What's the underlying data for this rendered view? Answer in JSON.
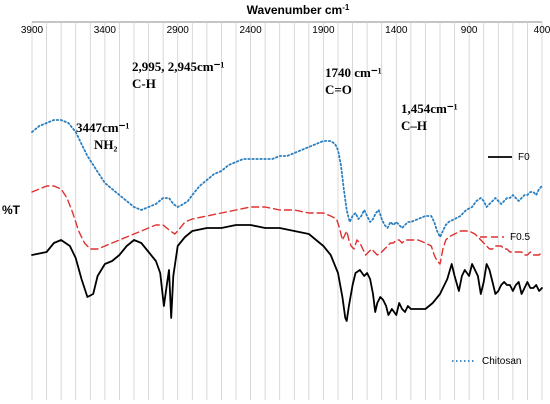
{
  "chart_data": {
    "type": "line",
    "title": "",
    "xlabel": "Wavenumber cm",
    "xlabel_sup": "-1",
    "ylabel": "%T",
    "xlim": [
      3900,
      400
    ],
    "x_ticks": [
      3900,
      3400,
      2900,
      2400,
      1900,
      1400,
      900,
      400
    ],
    "x_tick_labels": [
      "3900",
      "3400",
      "2900",
      "2400",
      "1900",
      "1400",
      "900",
      "400"
    ],
    "grid": true,
    "legend_placement": "inline-right",
    "series": [
      {
        "name": "F0",
        "color": "#000000",
        "style": "solid",
        "points": [
          [
            3900,
            75
          ],
          [
            3800,
            74
          ],
          [
            3750,
            71
          ],
          [
            3700,
            70
          ],
          [
            3640,
            72
          ],
          [
            3600,
            76
          ],
          [
            3560,
            83
          ],
          [
            3520,
            89
          ],
          [
            3480,
            88
          ],
          [
            3450,
            82
          ],
          [
            3400,
            78
          ],
          [
            3350,
            77
          ],
          [
            3300,
            75
          ],
          [
            3250,
            72
          ],
          [
            3200,
            70
          ],
          [
            3150,
            71
          ],
          [
            3100,
            74
          ],
          [
            3050,
            77
          ],
          [
            3020,
            81
          ],
          [
            2995,
            92
          ],
          [
            2975,
            85
          ],
          [
            2960,
            80
          ],
          [
            2945,
            96
          ],
          [
            2930,
            82
          ],
          [
            2900,
            72
          ],
          [
            2850,
            69
          ],
          [
            2800,
            67
          ],
          [
            2700,
            66
          ],
          [
            2600,
            66
          ],
          [
            2500,
            65
          ],
          [
            2400,
            65
          ],
          [
            2300,
            66
          ],
          [
            2200,
            66
          ],
          [
            2100,
            67
          ],
          [
            2000,
            68
          ],
          [
            1950,
            70
          ],
          [
            1900,
            72
          ],
          [
            1850,
            75
          ],
          [
            1800,
            81
          ],
          [
            1770,
            89
          ],
          [
            1750,
            96
          ],
          [
            1740,
            97
          ],
          [
            1725,
            92
          ],
          [
            1700,
            85
          ],
          [
            1680,
            81
          ],
          [
            1650,
            80
          ],
          [
            1620,
            82
          ],
          [
            1600,
            81
          ],
          [
            1580,
            83
          ],
          [
            1560,
            88
          ],
          [
            1545,
            94
          ],
          [
            1530,
            91
          ],
          [
            1510,
            89
          ],
          [
            1490,
            90
          ],
          [
            1470,
            92
          ],
          [
            1454,
            95
          ],
          [
            1430,
            93
          ],
          [
            1400,
            95
          ],
          [
            1380,
            91
          ],
          [
            1360,
            93
          ],
          [
            1340,
            94
          ],
          [
            1320,
            92
          ],
          [
            1300,
            93
          ],
          [
            1250,
            93
          ],
          [
            1200,
            93
          ],
          [
            1150,
            91
          ],
          [
            1100,
            88
          ],
          [
            1050,
            83
          ],
          [
            1020,
            78
          ],
          [
            1000,
            82
          ],
          [
            970,
            87
          ],
          [
            950,
            82
          ],
          [
            930,
            80
          ],
          [
            900,
            82
          ],
          [
            880,
            78
          ],
          [
            860,
            80
          ],
          [
            840,
            82
          ],
          [
            820,
            88
          ],
          [
            800,
            84
          ],
          [
            780,
            78
          ],
          [
            760,
            80
          ],
          [
            740,
            84
          ],
          [
            720,
            88
          ],
          [
            700,
            87
          ],
          [
            680,
            85
          ],
          [
            660,
            84
          ],
          [
            640,
            85
          ],
          [
            620,
            85
          ],
          [
            600,
            87
          ],
          [
            580,
            85
          ],
          [
            560,
            84
          ],
          [
            540,
            88
          ],
          [
            520,
            86
          ],
          [
            500,
            84
          ],
          [
            480,
            86
          ],
          [
            460,
            86
          ],
          [
            440,
            85
          ],
          [
            420,
            87
          ],
          [
            400,
            86
          ]
        ]
      },
      {
        "name": "F0.5",
        "color": "#e03030",
        "style": "dashed",
        "points": [
          [
            3900,
            54
          ],
          [
            3850,
            53
          ],
          [
            3800,
            52
          ],
          [
            3750,
            52
          ],
          [
            3700,
            53
          ],
          [
            3660,
            56
          ],
          [
            3620,
            61
          ],
          [
            3580,
            67
          ],
          [
            3540,
            71
          ],
          [
            3500,
            73
          ],
          [
            3450,
            73
          ],
          [
            3400,
            72
          ],
          [
            3350,
            71
          ],
          [
            3300,
            70
          ],
          [
            3250,
            69
          ],
          [
            3200,
            68
          ],
          [
            3150,
            67
          ],
          [
            3100,
            66
          ],
          [
            3050,
            65
          ],
          [
            3000,
            65
          ],
          [
            2950,
            67
          ],
          [
            2920,
            68
          ],
          [
            2900,
            67
          ],
          [
            2850,
            64
          ],
          [
            2800,
            63
          ],
          [
            2700,
            62
          ],
          [
            2600,
            61
          ],
          [
            2500,
            60
          ],
          [
            2400,
            59
          ],
          [
            2300,
            59
          ],
          [
            2200,
            60
          ],
          [
            2100,
            60
          ],
          [
            2000,
            61
          ],
          [
            1950,
            61
          ],
          [
            1900,
            61
          ],
          [
            1850,
            62
          ],
          [
            1810,
            63
          ],
          [
            1790,
            66
          ],
          [
            1770,
            70
          ],
          [
            1750,
            68
          ],
          [
            1740,
            67
          ],
          [
            1725,
            70
          ],
          [
            1710,
            72
          ],
          [
            1690,
            73
          ],
          [
            1670,
            70
          ],
          [
            1650,
            71
          ],
          [
            1630,
            73
          ],
          [
            1610,
            75
          ],
          [
            1590,
            74
          ],
          [
            1570,
            73
          ],
          [
            1550,
            74
          ],
          [
            1530,
            75
          ],
          [
            1500,
            74
          ],
          [
            1480,
            73
          ],
          [
            1460,
            72
          ],
          [
            1440,
            71
          ],
          [
            1420,
            71
          ],
          [
            1400,
            70
          ],
          [
            1380,
            70
          ],
          [
            1360,
            71
          ],
          [
            1340,
            70
          ],
          [
            1320,
            70
          ],
          [
            1300,
            70
          ],
          [
            1250,
            70
          ],
          [
            1200,
            71
          ],
          [
            1160,
            72
          ],
          [
            1140,
            75
          ],
          [
            1120,
            77
          ],
          [
            1100,
            78
          ],
          [
            1080,
            73
          ],
          [
            1060,
            70
          ],
          [
            1040,
            69
          ],
          [
            1000,
            68
          ],
          [
            960,
            67
          ],
          [
            930,
            67
          ],
          [
            900,
            67
          ],
          [
            860,
            68
          ],
          [
            840,
            69
          ],
          [
            820,
            70
          ],
          [
            800,
            71
          ],
          [
            780,
            72
          ],
          [
            760,
            73
          ],
          [
            740,
            73
          ],
          [
            720,
            72
          ],
          [
            700,
            72
          ],
          [
            680,
            72
          ],
          [
            660,
            73
          ],
          [
            640,
            73
          ],
          [
            620,
            74
          ],
          [
            600,
            74
          ],
          [
            580,
            74
          ],
          [
            560,
            74
          ],
          [
            540,
            74
          ],
          [
            520,
            75
          ],
          [
            500,
            75
          ],
          [
            480,
            74
          ],
          [
            460,
            75
          ],
          [
            440,
            75
          ],
          [
            420,
            75
          ],
          [
            400,
            74
          ]
        ]
      },
      {
        "name": "Chitosan",
        "color": "#2b7fc0",
        "style": "dotted",
        "points": [
          [
            3900,
            34
          ],
          [
            3850,
            32
          ],
          [
            3800,
            31
          ],
          [
            3750,
            30
          ],
          [
            3700,
            30
          ],
          [
            3650,
            31
          ],
          [
            3600,
            34
          ],
          [
            3560,
            38
          ],
          [
            3520,
            42
          ],
          [
            3480,
            45
          ],
          [
            3440,
            48
          ],
          [
            3400,
            51
          ],
          [
            3350,
            53
          ],
          [
            3300,
            55
          ],
          [
            3250,
            57
          ],
          [
            3200,
            59
          ],
          [
            3150,
            60
          ],
          [
            3100,
            59
          ],
          [
            3050,
            58
          ],
          [
            3000,
            56
          ],
          [
            2960,
            56
          ],
          [
            2930,
            58
          ],
          [
            2900,
            59
          ],
          [
            2860,
            58
          ],
          [
            2830,
            57
          ],
          [
            2800,
            55
          ],
          [
            2750,
            52
          ],
          [
            2700,
            50
          ],
          [
            2650,
            48
          ],
          [
            2600,
            47
          ],
          [
            2550,
            45
          ],
          [
            2500,
            44
          ],
          [
            2450,
            43
          ],
          [
            2400,
            43
          ],
          [
            2350,
            43
          ],
          [
            2300,
            43
          ],
          [
            2250,
            43
          ],
          [
            2200,
            42
          ],
          [
            2150,
            42
          ],
          [
            2100,
            41
          ],
          [
            2050,
            40
          ],
          [
            2000,
            39
          ],
          [
            1950,
            38
          ],
          [
            1900,
            37
          ],
          [
            1850,
            37
          ],
          [
            1820,
            38
          ],
          [
            1800,
            40
          ],
          [
            1780,
            45
          ],
          [
            1760,
            53
          ],
          [
            1740,
            60
          ],
          [
            1720,
            64
          ],
          [
            1700,
            62
          ],
          [
            1680,
            61
          ],
          [
            1660,
            63
          ],
          [
            1640,
            62
          ],
          [
            1620,
            60
          ],
          [
            1600,
            62
          ],
          [
            1580,
            64
          ],
          [
            1560,
            63
          ],
          [
            1540,
            61
          ],
          [
            1520,
            60
          ],
          [
            1500,
            63
          ],
          [
            1480,
            65
          ],
          [
            1460,
            66
          ],
          [
            1440,
            64
          ],
          [
            1420,
            65
          ],
          [
            1400,
            64
          ],
          [
            1380,
            65
          ],
          [
            1360,
            66
          ],
          [
            1340,
            65
          ],
          [
            1320,
            64
          ],
          [
            1300,
            64
          ],
          [
            1250,
            63
          ],
          [
            1200,
            62
          ],
          [
            1160,
            62
          ],
          [
            1140,
            64
          ],
          [
            1120,
            67
          ],
          [
            1100,
            69
          ],
          [
            1080,
            67
          ],
          [
            1060,
            65
          ],
          [
            1040,
            64
          ],
          [
            1000,
            63
          ],
          [
            960,
            62
          ],
          [
            920,
            60
          ],
          [
            880,
            59
          ],
          [
            850,
            57
          ],
          [
            820,
            56
          ],
          [
            800,
            57
          ],
          [
            780,
            59
          ],
          [
            760,
            58
          ],
          [
            740,
            57
          ],
          [
            720,
            56
          ],
          [
            700,
            57
          ],
          [
            680,
            58
          ],
          [
            660,
            57
          ],
          [
            640,
            56
          ],
          [
            620,
            56
          ],
          [
            600,
            55
          ],
          [
            580,
            56
          ],
          [
            560,
            57
          ],
          [
            540,
            56
          ],
          [
            520,
            55
          ],
          [
            500,
            55
          ],
          [
            480,
            54
          ],
          [
            460,
            54
          ],
          [
            440,
            55
          ],
          [
            420,
            53
          ],
          [
            400,
            52
          ]
        ]
      }
    ],
    "annotations": [
      {
        "id": "ch",
        "lines": [
          "2,995, 2,945cm⁻¹",
          "C-H"
        ]
      },
      {
        "id": "co",
        "lines": [
          "1740 cm⁻¹",
          "C=O"
        ]
      },
      {
        "id": "ch2",
        "lines": [
          "1,454cm⁻¹",
          "C–H"
        ]
      },
      {
        "id": "nh",
        "lines": [
          "3447cm⁻¹",
          "NH₂"
        ]
      }
    ]
  }
}
